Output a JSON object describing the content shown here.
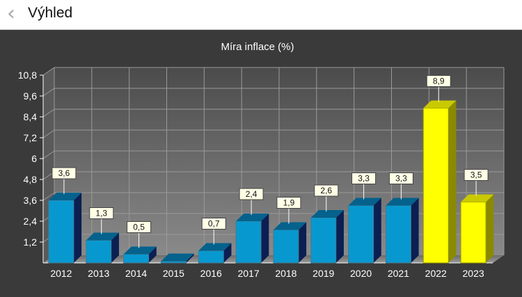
{
  "header": {
    "title": "Výhled",
    "back_icon": "chevron-left-icon"
  },
  "chart_data": {
    "type": "bar",
    "title": "Míra inflace (%)",
    "xlabel": "",
    "ylabel": "",
    "categories": [
      "2012",
      "2013",
      "2014",
      "2015",
      "2016",
      "2017",
      "2018",
      "2019",
      "2020",
      "2021",
      "2022",
      "2023"
    ],
    "values": [
      3.6,
      1.3,
      0.5,
      0.1,
      0.7,
      2.4,
      1.9,
      2.6,
      3.3,
      3.3,
      8.9,
      3.5
    ],
    "data_labels": [
      "3,6",
      "1,3",
      "0,5",
      "",
      "0,7",
      "2,4",
      "1,9",
      "2,6",
      "3,3",
      "3,3",
      "8,9",
      "3,5"
    ],
    "ylim": [
      0,
      10.8
    ],
    "yticks": [
      1.2,
      2.4,
      3.6,
      4.8,
      6,
      7.2,
      8.4,
      9.6,
      10.8
    ],
    "ytick_labels": [
      "1,2",
      "2,4",
      "3,6",
      "4,8",
      "6",
      "7,2",
      "8,4",
      "9,6",
      "10,8"
    ],
    "grid": true,
    "colors": {
      "historical_front": "#0898d0",
      "historical_top": "#04628c",
      "historical_side": "#0b1f52",
      "forecast_front": "#ffff00",
      "forecast_top": "#c9c900",
      "forecast_side": "#8a8a00",
      "label_bg": "#ffffe6"
    },
    "forecast_from_index": 10
  }
}
